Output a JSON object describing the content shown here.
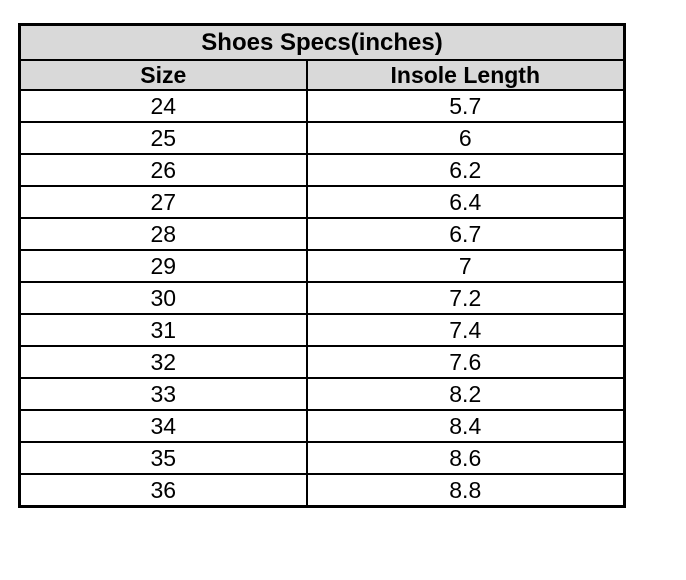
{
  "chart_data": {
    "type": "table",
    "title": "Shoes Specs(inches)",
    "columns": [
      "Size",
      "Insole Length"
    ],
    "rows": [
      [
        24,
        5.7
      ],
      [
        25,
        6
      ],
      [
        26,
        6.2
      ],
      [
        27,
        6.4
      ],
      [
        28,
        6.7
      ],
      [
        29,
        7
      ],
      [
        30,
        7.2
      ],
      [
        31,
        7.4
      ],
      [
        32,
        7.6
      ],
      [
        33,
        8.2
      ],
      [
        34,
        8.4
      ],
      [
        35,
        8.6
      ],
      [
        36,
        8.8
      ]
    ],
    "layout": {
      "header_rows_shaded": true,
      "grid": "all-borders"
    }
  },
  "colors": {
    "header_bg": "#d9d9d9",
    "border": "#000000",
    "text": "#000000",
    "row_bg": "#ffffff"
  }
}
